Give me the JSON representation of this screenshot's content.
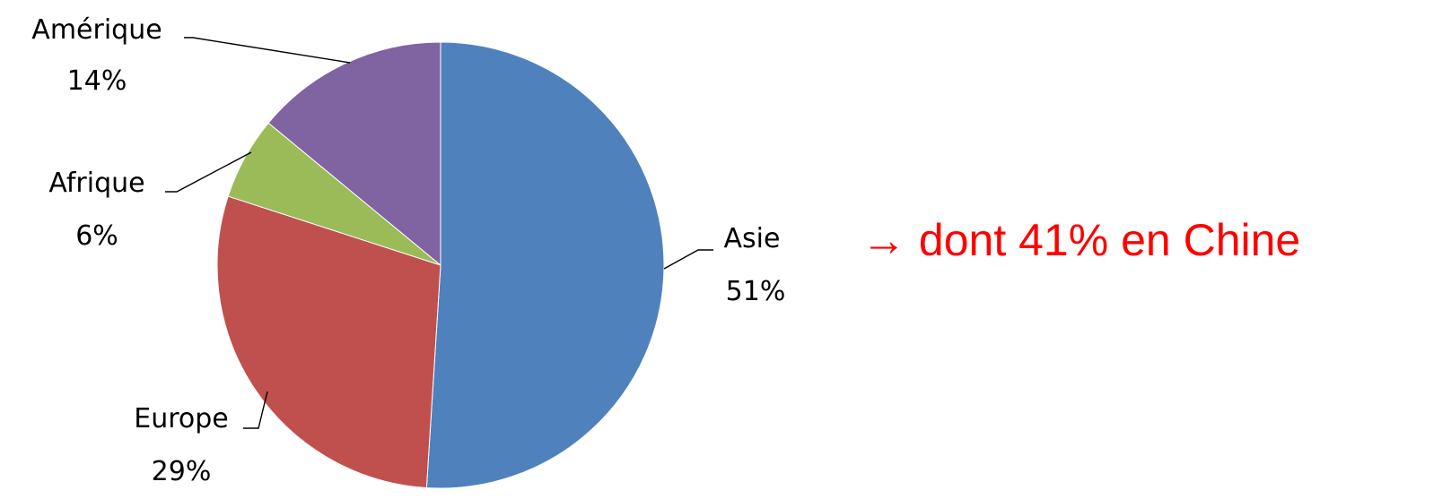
{
  "chart_data": {
    "type": "pie",
    "slices": [
      {
        "label": "Asie",
        "value": 51,
        "value_label": "51%",
        "color": "#4f81bd"
      },
      {
        "label": "Europe",
        "value": 29,
        "value_label": "29%",
        "color": "#c0504d"
      },
      {
        "label": "Afrique",
        "value": 6,
        "value_label": "6%",
        "color": "#9bbb59"
      },
      {
        "label": "Amérique",
        "value": 14,
        "value_label": "14%",
        "color": "#8064a2"
      }
    ],
    "start": "12 o'clock",
    "direction": "clockwise",
    "legend": "none",
    "data_labels": "outside with leader lines"
  },
  "annotation": {
    "arrow": "→",
    "text": "dont 41% en Chine",
    "color": "#ff0000"
  }
}
